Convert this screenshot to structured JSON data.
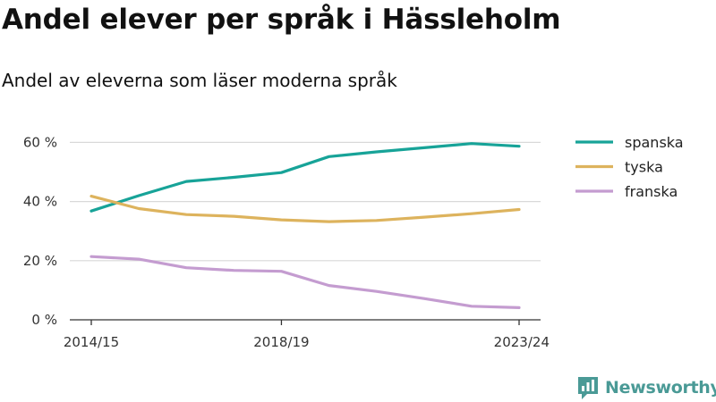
{
  "chart_data": {
    "type": "line",
    "title": "Andel elever per språk i Hässleholm",
    "subtitle": "Andel av eleverna som läser moderna språk",
    "xlabel": "",
    "ylabel": "",
    "x": [
      "2014/15",
      "2015/16",
      "2016/17",
      "2017/18",
      "2018/19",
      "2019/20",
      "2020/21",
      "2021/22",
      "2022/23",
      "2023/24"
    ],
    "x_tick_labels": [
      "2014/15",
      "2018/19",
      "2023/24"
    ],
    "y_ticks": [
      0,
      20,
      40,
      60
    ],
    "y_tick_labels": [
      "0 %",
      "20 %",
      "40 %",
      "60 %"
    ],
    "ylim": [
      0,
      70
    ],
    "grid": true,
    "legend_position": "right",
    "series": [
      {
        "name": "spanska",
        "color": "#17a398",
        "values": [
          36.8,
          42.0,
          46.8,
          48.2,
          49.8,
          55.2,
          56.8,
          58.2,
          59.6,
          58.7
        ]
      },
      {
        "name": "tyska",
        "color": "#ddb35d",
        "values": [
          41.8,
          37.6,
          35.6,
          35.0,
          33.8,
          33.2,
          33.6,
          34.7,
          35.9,
          37.3
        ]
      },
      {
        "name": "franska",
        "color": "#c49cd0",
        "values": [
          21.4,
          20.5,
          17.6,
          16.7,
          16.4,
          11.6,
          9.6,
          7.2,
          4.6,
          4.1
        ]
      }
    ]
  },
  "branding": {
    "logo_text": "Newsworthy",
    "logo_icon": "newsworthy-logo-icon"
  }
}
